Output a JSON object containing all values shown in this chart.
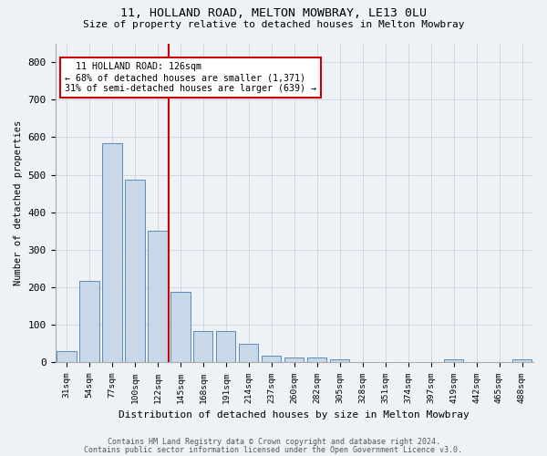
{
  "title1": "11, HOLLAND ROAD, MELTON MOWBRAY, LE13 0LU",
  "title2": "Size of property relative to detached houses in Melton Mowbray",
  "xlabel": "Distribution of detached houses by size in Melton Mowbray",
  "ylabel": "Number of detached properties",
  "categories": [
    "31sqm",
    "54sqm",
    "77sqm",
    "100sqm",
    "122sqm",
    "145sqm",
    "168sqm",
    "191sqm",
    "214sqm",
    "237sqm",
    "260sqm",
    "282sqm",
    "305sqm",
    "328sqm",
    "351sqm",
    "374sqm",
    "397sqm",
    "419sqm",
    "442sqm",
    "465sqm",
    "488sqm"
  ],
  "values": [
    30,
    218,
    585,
    488,
    350,
    188,
    83,
    83,
    50,
    18,
    13,
    13,
    8,
    0,
    0,
    0,
    0,
    8,
    0,
    0,
    8
  ],
  "bar_color": "#c8d8e8",
  "bar_edge_color": "#5b8db8",
  "red_line_x": 4.5,
  "red_line_color": "#cc0000",
  "annotation_text": "  11 HOLLAND ROAD: 126sqm\n← 68% of detached houses are smaller (1,371)\n31% of semi-detached houses are larger (639) →",
  "annotation_box_color": "#ffffff",
  "annotation_box_edge": "#cc0000",
  "footer1": "Contains HM Land Registry data © Crown copyright and database right 2024.",
  "footer2": "Contains public sector information licensed under the Open Government Licence v3.0.",
  "bg_color": "#eef2f7",
  "ylim": [
    0,
    850
  ],
  "yticks": [
    0,
    100,
    200,
    300,
    400,
    500,
    600,
    700,
    800
  ]
}
